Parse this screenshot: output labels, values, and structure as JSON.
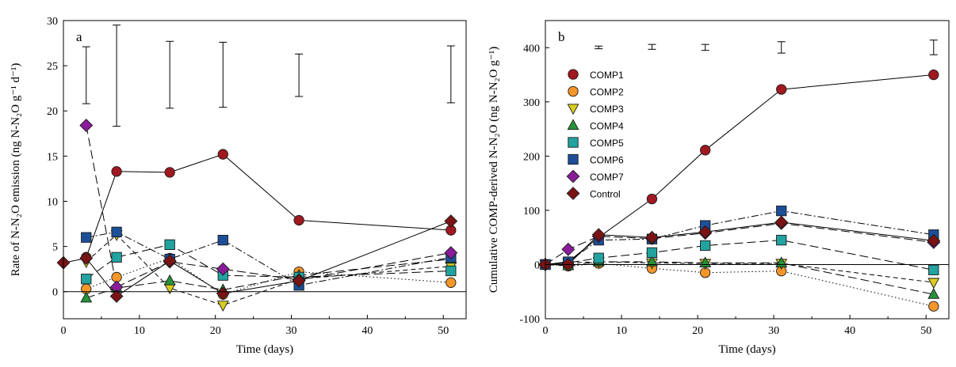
{
  "chart_data": [
    {
      "panel_label": "a",
      "type": "scatter",
      "xlabel": "Time (days)",
      "ylabel": "Rate of N-N₂O emission (ng N-N₂O g⁻¹ d⁻¹)",
      "xlim": [
        0,
        53
      ],
      "ylim": [
        -3,
        30
      ],
      "xticks": [
        "0",
        "10",
        "20",
        "30",
        "40",
        "50"
      ],
      "yticks": [
        "0",
        "5",
        "10",
        "15",
        "20",
        "25",
        "30"
      ],
      "error_bars": [
        {
          "x": 3,
          "low": 20.8,
          "high": 27.1
        },
        {
          "x": 7,
          "low": 18.3,
          "high": 29.5
        },
        {
          "x": 14,
          "low": 20.3,
          "high": 27.7
        },
        {
          "x": 21,
          "low": 20.4,
          "high": 27.6
        },
        {
          "x": 31,
          "low": 21.6,
          "high": 26.3
        },
        {
          "x": 51,
          "low": 20.9,
          "high": 27.2
        }
      ],
      "series": [
        {
          "name": "COMP1",
          "color": "#a01820",
          "marker": "circle",
          "line": "solid",
          "points": [
            [
              3,
              3.8
            ],
            [
              7,
              13.3
            ],
            [
              14,
              13.2
            ],
            [
              21,
              15.2
            ],
            [
              31,
              7.9
            ],
            [
              51,
              6.8
            ]
          ]
        },
        {
          "name": "COMP2",
          "color": "#f5962a",
          "marker": "circle",
          "line": "dotted",
          "points": [
            [
              3,
              0.3
            ],
            [
              7,
              1.6
            ],
            [
              14,
              3.7
            ],
            [
              21,
              -0.3
            ],
            [
              31,
              2.2
            ],
            [
              51,
              1.0
            ]
          ]
        },
        {
          "name": "COMP3",
          "color": "#d8cc22",
          "marker": "triangle-down",
          "line": "dash",
          "points": [
            [
              3,
              3.3
            ],
            [
              7,
              6.3
            ],
            [
              14,
              0.4
            ],
            [
              21,
              -1.5
            ],
            [
              31,
              1.4
            ],
            [
              51,
              2.8
            ]
          ]
        },
        {
          "name": "COMP4",
          "color": "#27923a",
          "marker": "triangle-up",
          "line": "longdash",
          "points": [
            [
              3,
              -0.7
            ],
            [
              7,
              0.4
            ],
            [
              14,
              1.2
            ],
            [
              21,
              0.2
            ],
            [
              31,
              1.8
            ],
            [
              51,
              3.6
            ]
          ]
        },
        {
          "name": "COMP5",
          "color": "#22a3a0",
          "marker": "square",
          "line": "longdash",
          "points": [
            [
              3,
              1.4
            ],
            [
              7,
              3.8
            ],
            [
              14,
              5.2
            ],
            [
              21,
              1.8
            ],
            [
              31,
              1.6
            ],
            [
              51,
              2.3
            ]
          ]
        },
        {
          "name": "COMP6",
          "color": "#1c4f97",
          "marker": "square",
          "line": "dashdot",
          "points": [
            [
              3,
              6.0
            ],
            [
              7,
              6.6
            ],
            [
              14,
              3.6
            ],
            [
              21,
              5.7
            ],
            [
              31,
              0.7
            ],
            [
              51,
              3.8
            ]
          ]
        },
        {
          "name": "COMP7",
          "color": "#8a1c9a",
          "marker": "diamond",
          "line": "longdash",
          "points": [
            [
              3,
              18.4
            ],
            [
              7,
              0.5
            ],
            [
              14,
              3.3
            ],
            [
              21,
              2.5
            ],
            [
              31,
              1.3
            ],
            [
              51,
              4.3
            ]
          ]
        },
        {
          "name": "Control",
          "color": "#7a1414",
          "marker": "diamond",
          "line": "solid",
          "points": [
            [
              0,
              3.2
            ],
            [
              3,
              3.7
            ],
            [
              7,
              -0.5
            ],
            [
              14,
              3.4
            ],
            [
              21,
              -0.2
            ],
            [
              31,
              1.2
            ],
            [
              51,
              7.8
            ]
          ]
        }
      ]
    },
    {
      "panel_label": "b",
      "type": "scatter",
      "xlabel": "Time (days)",
      "ylabel": "Cumulative COMP-derived N-N₂O (ng N-N₂O g⁻¹)",
      "xlim": [
        0,
        53
      ],
      "ylim": [
        -100,
        450
      ],
      "xticks": [
        "0",
        "10",
        "20",
        "30",
        "40",
        "50"
      ],
      "yticks": [
        "-100",
        "0",
        "100",
        "200",
        "300",
        "400"
      ],
      "legend": {
        "position": "top-left",
        "entries": [
          "COMP1",
          "COMP2",
          "COMP3",
          "COMP4",
          "COMP5",
          "COMP6",
          "COMP7",
          "Control"
        ]
      },
      "error_bars": [
        {
          "x": 7,
          "low": 398,
          "high": 403
        },
        {
          "x": 14,
          "low": 397,
          "high": 406
        },
        {
          "x": 21,
          "low": 395,
          "high": 406
        },
        {
          "x": 31,
          "low": 390,
          "high": 411
        },
        {
          "x": 51,
          "low": 387,
          "high": 414
        }
      ],
      "series": [
        {
          "name": "COMP1",
          "color": "#a01820",
          "marker": "circle",
          "line": "solid",
          "points": [
            [
              0,
              0
            ],
            [
              3,
              5
            ],
            [
              7,
              50
            ],
            [
              14,
              121
            ],
            [
              21,
              211
            ],
            [
              31,
              323
            ],
            [
              51,
              350
            ]
          ]
        },
        {
          "name": "COMP2",
          "color": "#f5962a",
          "marker": "circle",
          "line": "dotted",
          "points": [
            [
              0,
              0
            ],
            [
              3,
              -3
            ],
            [
              7,
              2
            ],
            [
              14,
              -7
            ],
            [
              21,
              -15
            ],
            [
              31,
              -12
            ],
            [
              51,
              -77
            ]
          ]
        },
        {
          "name": "COMP3",
          "color": "#d8cc22",
          "marker": "triangle-down",
          "line": "dash",
          "points": [
            [
              0,
              0
            ],
            [
              3,
              3
            ],
            [
              7,
              5
            ],
            [
              14,
              3
            ],
            [
              21,
              2
            ],
            [
              31,
              2
            ],
            [
              51,
              -33
            ]
          ]
        },
        {
          "name": "COMP4",
          "color": "#27923a",
          "marker": "triangle-up",
          "line": "longdash",
          "points": [
            [
              0,
              0
            ],
            [
              3,
              -2
            ],
            [
              7,
              5
            ],
            [
              14,
              5
            ],
            [
              21,
              3
            ],
            [
              31,
              3
            ],
            [
              51,
              -55
            ]
          ]
        },
        {
          "name": "COMP5",
          "color": "#22a3a0",
          "marker": "square",
          "line": "longdash",
          "points": [
            [
              0,
              0
            ],
            [
              3,
              3
            ],
            [
              7,
              12
            ],
            [
              14,
              22
            ],
            [
              21,
              35
            ],
            [
              31,
              45
            ],
            [
              51,
              -10
            ]
          ]
        },
        {
          "name": "COMP6",
          "color": "#1c4f97",
          "marker": "square",
          "line": "dashdot",
          "points": [
            [
              0,
              0
            ],
            [
              3,
              5
            ],
            [
              7,
              45
            ],
            [
              14,
              47
            ],
            [
              21,
              72
            ],
            [
              31,
              99
            ],
            [
              51,
              55
            ]
          ]
        },
        {
          "name": "COMP7",
          "color": "#8a1c9a",
          "marker": "diamond",
          "line": "longdash",
          "points": [
            [
              0,
              0
            ],
            [
              3,
              28
            ],
            [
              7,
              52
            ],
            [
              14,
              48
            ],
            [
              21,
              58
            ],
            [
              31,
              76
            ],
            [
              51,
              41
            ]
          ]
        },
        {
          "name": "Control",
          "color": "#7a1414",
          "marker": "diamond",
          "line": "solid",
          "points": [
            [
              0,
              0
            ],
            [
              3,
              0
            ],
            [
              7,
              55
            ],
            [
              14,
              50
            ],
            [
              21,
              60
            ],
            [
              31,
              78
            ],
            [
              51,
              44
            ]
          ]
        }
      ]
    }
  ]
}
